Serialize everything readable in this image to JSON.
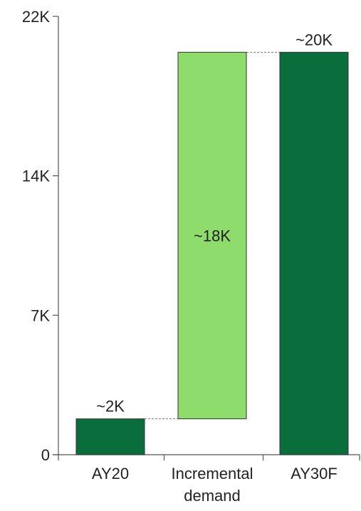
{
  "chart_data": {
    "type": "waterfall",
    "title": "",
    "xlabel": "",
    "ylabel": "",
    "ylim": [
      0,
      22000
    ],
    "y_ticks": [
      {
        "value": 0,
        "label": "0"
      },
      {
        "value": 7000,
        "label": "7K"
      },
      {
        "value": 14000,
        "label": "14K"
      },
      {
        "value": 22000,
        "label": "22K"
      }
    ],
    "categories": [
      {
        "label_lines": [
          "AY20"
        ]
      },
      {
        "label_lines": [
          "Incremental",
          "demand"
        ]
      },
      {
        "label_lines": [
          "AY30F"
        ]
      }
    ],
    "bars": [
      {
        "start": 0,
        "end": 1800,
        "label": "~2K",
        "color": "#0a6e3c",
        "label_position": "above"
      },
      {
        "start": 1800,
        "end": 20200,
        "label": "~18K",
        "color": "#8edc6c",
        "label_position": "inside"
      },
      {
        "start": 0,
        "end": 20200,
        "label": "~20K",
        "color": "#0a6e3c",
        "label_position": "above"
      }
    ],
    "connectors": true,
    "grid": false
  }
}
